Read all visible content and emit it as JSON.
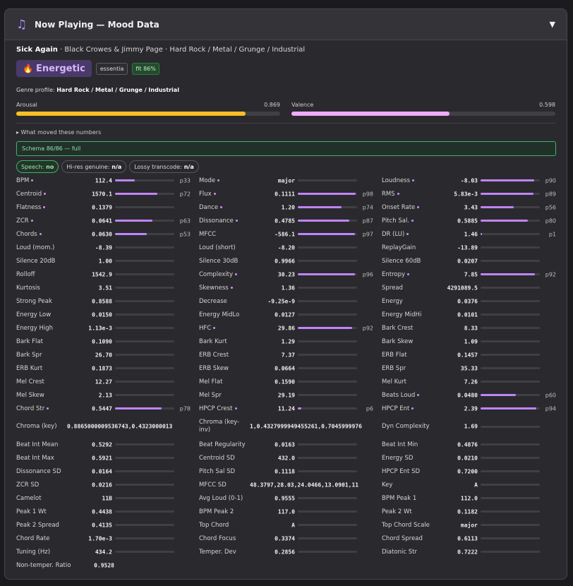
{
  "header": {
    "title": "Now Playing — Mood Data",
    "icon": "music-note-icon"
  },
  "track": {
    "title": "Sick Again",
    "rest": " · Black Crowes & Jimmy Page · Hard Rock / Metal / Grunge / Industrial"
  },
  "mood": {
    "label": "Energetic",
    "icon": "flame-icon",
    "source": "essentia",
    "fit": "fit 86%"
  },
  "genre_profile": {
    "prefix": "Genre profile: ",
    "value": "Hard Rock / Metal / Grunge / Industrial"
  },
  "arousal": {
    "label": "Arousal",
    "value": "0.869",
    "fraction": 0.869,
    "color": "#fbbf24"
  },
  "valence": {
    "label": "Valence",
    "value": "0.598",
    "fraction": 0.598,
    "color": "#f0abfc"
  },
  "moved": "▸ What moved these numbers",
  "schema": "Schema 86/86 — full",
  "pills": [
    {
      "label": "Speech:",
      "value": "no"
    },
    {
      "label": "Hi-res genuine:",
      "value": "n/a"
    },
    {
      "label": "Lossy transcode:",
      "value": "n/a"
    }
  ],
  "rows": [
    [
      {
        "l": "BPM",
        "dot": true,
        "v": "112.4",
        "b": 0.33,
        "p": "p33"
      },
      {
        "l": "Mode",
        "dot": true,
        "v": "major",
        "b": 0
      },
      {
        "l": "Loudness",
        "dot": true,
        "v": "-8.03",
        "b": 0.9,
        "p": "p90"
      }
    ],
    [
      {
        "l": "Centroid",
        "dot": true,
        "v": "1570.1",
        "b": 0.72,
        "p": "p72"
      },
      {
        "l": "Flux",
        "dot": true,
        "v": "0.1111",
        "b": 0.98,
        "p": "p98"
      },
      {
        "l": "RMS",
        "dot": true,
        "v": "5.83e-3",
        "b": 0.89,
        "p": "p89"
      }
    ],
    [
      {
        "l": "Flatness",
        "dot": true,
        "v": "0.1379",
        "b": 0
      },
      {
        "l": "Dance",
        "dot": true,
        "v": "1.20",
        "b": 0.74,
        "p": "p74"
      },
      {
        "l": "Onset Rate",
        "dot": true,
        "v": "3.43",
        "b": 0.56,
        "p": "p56"
      }
    ],
    [
      {
        "l": "ZCR",
        "dot": true,
        "v": "0.0641",
        "b": 0.63,
        "p": "p63"
      },
      {
        "l": "Dissonance",
        "dot": true,
        "v": "0.4785",
        "b": 0.87,
        "p": "p87"
      },
      {
        "l": "Pitch Sal.",
        "dot": true,
        "v": "0.5885",
        "b": 0.8,
        "p": "p80"
      }
    ],
    [
      {
        "l": "Chords",
        "dot": true,
        "v": "0.0630",
        "b": 0.53,
        "p": "p53"
      },
      {
        "l": "MFCC",
        "dot": false,
        "v": "-586.1",
        "b": 0.97,
        "p": "p97"
      },
      {
        "l": "DR (LU)",
        "dot": true,
        "v": "1.46",
        "b": 0.02,
        "p": "p1"
      }
    ],
    [
      {
        "l": "Loud (mom.)",
        "v": "-8.39",
        "b": 0
      },
      {
        "l": "Loud (short)",
        "v": "-8.20",
        "b": 0
      },
      {
        "l": "ReplayGain",
        "v": "-13.89",
        "b": 0
      }
    ],
    [
      {
        "l": "Silence 20dB",
        "v": "1.00",
        "b": 0
      },
      {
        "l": "Silence 30dB",
        "v": "0.9966",
        "b": 0
      },
      {
        "l": "Silence 60dB",
        "v": "0.0207",
        "b": 0
      }
    ],
    [
      {
        "l": "Rolloff",
        "v": "1542.9",
        "b": 0
      },
      {
        "l": "Complexity",
        "dot": true,
        "v": "30.23",
        "b": 0.96,
        "p": "p96"
      },
      {
        "l": "Entropy",
        "dot": true,
        "v": "7.85",
        "b": 0.92,
        "p": "p92"
      }
    ],
    [
      {
        "l": "Kurtosis",
        "v": "3.51",
        "b": 0
      },
      {
        "l": "Skewness",
        "dot": true,
        "v": "1.36",
        "b": 0
      },
      {
        "l": "Spread",
        "v": "4291089.5",
        "b": 0
      }
    ],
    [
      {
        "l": "Strong Peak",
        "v": "0.8588",
        "b": 0
      },
      {
        "l": "Decrease",
        "v": "-9.25e-9",
        "b": 0
      },
      {
        "l": "Energy",
        "v": "0.0376",
        "b": 0
      }
    ],
    [
      {
        "l": "Energy Low",
        "v": "0.0150",
        "b": 0
      },
      {
        "l": "Energy MidLo",
        "v": "0.0127",
        "b": 0
      },
      {
        "l": "Energy MidHi",
        "v": "0.0101",
        "b": 0
      }
    ],
    [
      {
        "l": "Energy High",
        "v": "1.13e-3",
        "b": 0
      },
      {
        "l": "HFC",
        "dot": true,
        "v": "29.86",
        "b": 0.92,
        "p": "p92"
      },
      {
        "l": "Bark Crest",
        "v": "8.33",
        "b": 0
      }
    ],
    [
      {
        "l": "Bark Flat",
        "v": "0.1090",
        "b": 0
      },
      {
        "l": "Bark Kurt",
        "v": "1.29",
        "b": 0
      },
      {
        "l": "Bark Skew",
        "v": "1.09",
        "b": 0
      }
    ],
    [
      {
        "l": "Bark Spr",
        "v": "26.70",
        "b": 0
      },
      {
        "l": "ERB Crest",
        "v": "7.37",
        "b": 0
      },
      {
        "l": "ERB Flat",
        "v": "0.1457",
        "b": 0
      }
    ],
    [
      {
        "l": "ERB Kurt",
        "v": "0.1873",
        "b": 0
      },
      {
        "l": "ERB Skew",
        "v": "0.0664",
        "b": 0
      },
      {
        "l": "ERB Spr",
        "v": "35.33",
        "b": 0
      }
    ],
    [
      {
        "l": "Mel Crest",
        "v": "12.27",
        "b": 0
      },
      {
        "l": "Mel Flat",
        "v": "0.1590",
        "b": 0
      },
      {
        "l": "Mel Kurt",
        "v": "7.26",
        "b": 0
      }
    ],
    [
      {
        "l": "Mel Skew",
        "v": "2.13",
        "b": 0
      },
      {
        "l": "Mel Spr",
        "v": "29.19",
        "b": 0
      },
      {
        "l": "Beats Loud",
        "dot": true,
        "v": "0.0480",
        "b": 0.6,
        "p": "p60"
      }
    ],
    [
      {
        "l": "Chord Str",
        "dot": true,
        "v": "0.5447",
        "b": 0.78,
        "p": "p78"
      },
      {
        "l": "HPCP Crest",
        "dot": true,
        "v": "11.24",
        "b": 0.06,
        "p": "p6"
      },
      {
        "l": "HPCP Ent",
        "dot": true,
        "v": "2.39",
        "b": 0.94,
        "p": "p94"
      }
    ],
    [
      {
        "l": "Chroma (key)",
        "v": "0.8865000009536743,0.4323000013",
        "long": true
      },
      {
        "l": "Chroma (key-inv)",
        "v": "1,0.4327999949455261,0.7045999976",
        "long": true,
        "wrap": true
      },
      {
        "l": "Dyn Complexity",
        "v": "1.69",
        "b": 0
      }
    ],
    [
      {
        "l": "Beat Int Mean",
        "v": "0.5292",
        "b": 0
      },
      {
        "l": "Beat Regularity",
        "v": "0.0163",
        "b": 0
      },
      {
        "l": "Beat Int Min",
        "v": "0.4876",
        "b": 0
      }
    ],
    [
      {
        "l": "Beat Int Max",
        "v": "0.5921",
        "b": 0
      },
      {
        "l": "Centroid SD",
        "v": "432.0",
        "b": 0
      },
      {
        "l": "Energy SD",
        "v": "0.0210",
        "b": 0
      }
    ],
    [
      {
        "l": "Dissonance SD",
        "v": "0.0164",
        "b": 0
      },
      {
        "l": "Pitch Sal SD",
        "v": "0.1118",
        "b": 0
      },
      {
        "l": "HPCP Ent SD",
        "v": "0.7200",
        "b": 0
      }
    ],
    [
      {
        "l": "ZCR SD",
        "v": "0.0216",
        "b": 0
      },
      {
        "l": "MFCC SD",
        "v": "48.3797,28.03,24.0466,13.0901,11",
        "long": true
      },
      {
        "l": "Key",
        "v": "A",
        "b": 0
      }
    ],
    [
      {
        "l": "Camelot",
        "v": "11B",
        "b": 0
      },
      {
        "l": "Avg Loud (0-1)",
        "v": "0.9555",
        "b": 0
      },
      {
        "l": "BPM Peak 1",
        "v": "112.0",
        "b": 0
      }
    ],
    [
      {
        "l": "Peak 1 Wt",
        "v": "0.4438",
        "b": 0
      },
      {
        "l": "BPM Peak 2",
        "v": "117.0",
        "b": 0
      },
      {
        "l": "Peak 2 Wt",
        "v": "0.1182",
        "b": 0
      }
    ],
    [
      {
        "l": "Peak 2 Spread",
        "v": "0.4135",
        "b": 0
      },
      {
        "l": "Top Chord",
        "v": "A",
        "b": 0
      },
      {
        "l": "Top Chord Scale",
        "v": "major",
        "b": 0
      }
    ],
    [
      {
        "l": "Chord Rate",
        "v": "1.70e-3",
        "b": 0
      },
      {
        "l": "Chord Focus",
        "v": "0.3374",
        "b": 0
      },
      {
        "l": "Chord Spread",
        "v": "0.6113",
        "b": 0
      }
    ],
    [
      {
        "l": "Tuning (Hz)",
        "v": "434.2",
        "b": 0
      },
      {
        "l": "Temper. Dev",
        "v": "0.2856",
        "b": 0
      },
      {
        "l": "Diatonic Str",
        "v": "0.7222",
        "b": 0
      }
    ],
    [
      {
        "l": "Non-temper. Ratio",
        "v": "0.9528",
        "nobar": true
      }
    ]
  ]
}
